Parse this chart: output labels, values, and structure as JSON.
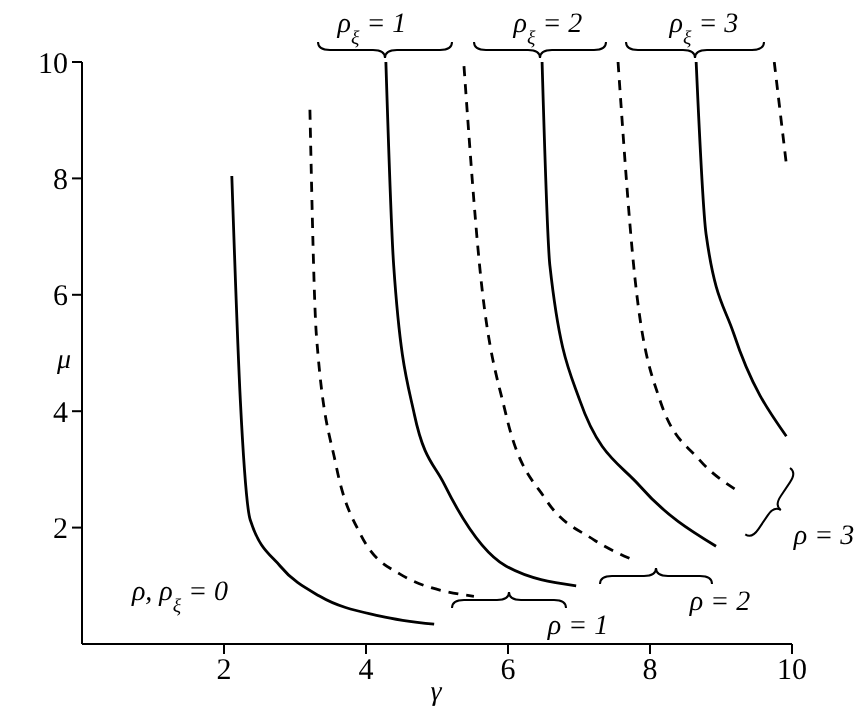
{
  "chart_data": {
    "type": "line",
    "xlabel": "γ",
    "ylabel": "μ",
    "xlim": [
      0,
      10
    ],
    "ylim": [
      0,
      10
    ],
    "xticks": [
      2,
      4,
      6,
      8,
      10
    ],
    "yticks": [
      2,
      4,
      6,
      8,
      10
    ],
    "marker": "none",
    "annotations": [
      "ρ$_{ξ}$ = 1",
      "ρ$_{ξ}$ = 2",
      "ρ$_{ξ}$ = 3",
      "ρ = 1",
      "ρ = 2",
      "ρ = 3",
      "ρ, ρ$_{ξ}$ = 0"
    ],
    "series": [
      {
        "color": "#000000",
        "line_style": "solid",
        "x": [
          2.11,
          2.23,
          2.37,
          2.79,
          3.35,
          4.2,
          4.96
        ],
        "values": [
          8.04,
          4.19,
          2.13,
          1.34,
          0.82,
          0.48,
          0.34
        ]
      },
      {
        "color": "#000000",
        "line_style": "dashed",
        "x": [
          3.21,
          3.3,
          3.58,
          3.92,
          4.48,
          5.52
        ],
        "values": [
          9.18,
          5.33,
          3.06,
          1.89,
          1.2,
          0.82
        ]
      },
      {
        "color": "#000000",
        "line_style": "solid",
        "x": [
          4.28,
          4.39,
          4.68,
          5.1,
          5.97,
          6.96
        ],
        "values": [
          10,
          6.5,
          3.95,
          2.75,
          1.34,
          1.0
        ]
      },
      {
        "color": "#000000",
        "line_style": "dashed",
        "x": [
          5.38,
          5.6,
          5.97,
          6.54,
          7.21,
          7.77
        ],
        "values": [
          9.93,
          6.5,
          3.95,
          2.47,
          1.79,
          1.44
        ]
      },
      {
        "color": "#000000",
        "line_style": "solid",
        "x": [
          6.48,
          6.59,
          7.01,
          7.86,
          8.93
        ],
        "values": [
          10,
          6.5,
          4.19,
          2.71,
          1.68
        ]
      },
      {
        "color": "#000000",
        "line_style": "dashed",
        "x": [
          7.55,
          7.77,
          8.14,
          8.7,
          9.21
        ],
        "values": [
          10,
          6.5,
          4.19,
          3.16,
          2.65
        ]
      },
      {
        "color": "#000000",
        "line_style": "solid",
        "x": [
          8.65,
          8.79,
          9.18,
          9.92
        ],
        "values": [
          10,
          7.04,
          5.33,
          3.57
        ]
      },
      {
        "color": "#000000",
        "line_style": "dashed",
        "x": [
          9.75,
          9.92
        ],
        "values": [
          10,
          8.25
        ]
      }
    ]
  }
}
